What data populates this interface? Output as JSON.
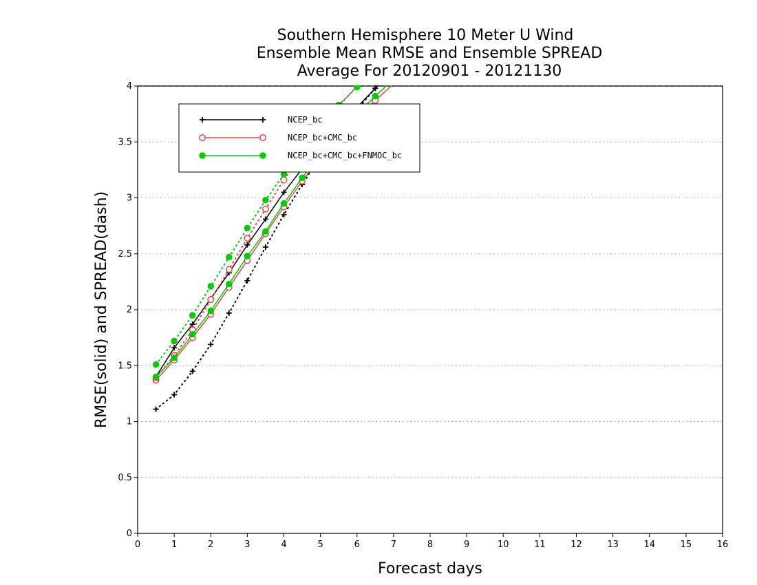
{
  "chart_data": {
    "type": "line",
    "title": [
      "Southern Hemisphere 10 Meter U Wind",
      "Ensemble Mean RMSE and Ensemble SPREAD",
      "Average For 20120901 - 20121130"
    ],
    "xlabel": "Forecast days",
    "ylabel": "RMSE(solid) and SPREAD(dash)",
    "xlim": [
      0,
      16
    ],
    "ylim": [
      0,
      4
    ],
    "xticks": [
      "0",
      "1",
      "2",
      "3",
      "4",
      "5",
      "6",
      "7",
      "8",
      "9",
      "10",
      "11",
      "12",
      "13",
      "14",
      "15",
      "16"
    ],
    "yticks": [
      "0",
      "0.5",
      "1",
      "1.5",
      "2",
      "2.5",
      "3",
      "3.5",
      "4"
    ],
    "grid": "horizontal dotted",
    "legend_position": "top-left",
    "x": [
      0.5,
      1,
      1.5,
      2,
      2.5,
      3,
      3.5,
      4,
      4.5,
      5,
      5.5,
      6,
      6.5,
      7
    ],
    "series": [
      {
        "name": "NCEP_bc",
        "color": "#000000",
        "marker": "plus",
        "style": "solid",
        "values": [
          1.4,
          1.66,
          1.87,
          2.1,
          2.33,
          2.58,
          2.81,
          3.05,
          3.26,
          3.46,
          3.64,
          3.81,
          3.98,
          4.15
        ]
      },
      {
        "name": "NCEP_bc",
        "color": "#000000",
        "marker": "plus",
        "style": "dash",
        "values": [
          1.11,
          1.24,
          1.45,
          1.69,
          1.97,
          2.26,
          2.56,
          2.85,
          3.12,
          3.37,
          3.59,
          3.79,
          3.98,
          4.17
        ]
      },
      {
        "name": "NCEP_bc+CMC_bc",
        "color": "#ee4444",
        "marker": "circle",
        "style": "solid",
        "values": [
          1.37,
          1.55,
          1.75,
          1.96,
          2.2,
          2.44,
          2.68,
          2.92,
          3.15,
          3.36,
          3.54,
          3.71,
          3.87,
          4.02
        ]
      },
      {
        "name": "NCEP_bc+CMC_bc",
        "color": "#ee4444",
        "marker": "circle",
        "style": "dash",
        "values": [
          1.39,
          1.59,
          1.82,
          2.09,
          2.36,
          2.64,
          2.9,
          3.16,
          3.4,
          3.62,
          3.82,
          4.0,
          4.17,
          4.33
        ]
      },
      {
        "name": "NCEP_bc+CMC_bc+FNMOC_bc",
        "color": "#00cc00",
        "marker": "dot",
        "style": "solid",
        "values": [
          1.4,
          1.57,
          1.78,
          1.99,
          2.23,
          2.48,
          2.7,
          2.95,
          3.18,
          3.39,
          3.58,
          3.75,
          3.91,
          4.06
        ]
      },
      {
        "name": "NCEP_bc+CMC_bc+FNMOC_bc",
        "color": "#00cc00",
        "marker": "dot",
        "style": "dash",
        "values": [
          1.51,
          1.72,
          1.95,
          2.21,
          2.47,
          2.73,
          2.98,
          3.21,
          3.44,
          3.65,
          3.83,
          3.99,
          4.14,
          4.28
        ]
      }
    ],
    "legend": [
      {
        "label": "NCEP_bc",
        "color": "#000000",
        "marker": "plus"
      },
      {
        "label": "NCEP_bc+CMC_bc",
        "color": "#ee4444",
        "marker": "circle"
      },
      {
        "label": "NCEP_bc+CMC_bc+FNMOC_bc",
        "color": "#00cc00",
        "marker": "dot"
      }
    ]
  }
}
